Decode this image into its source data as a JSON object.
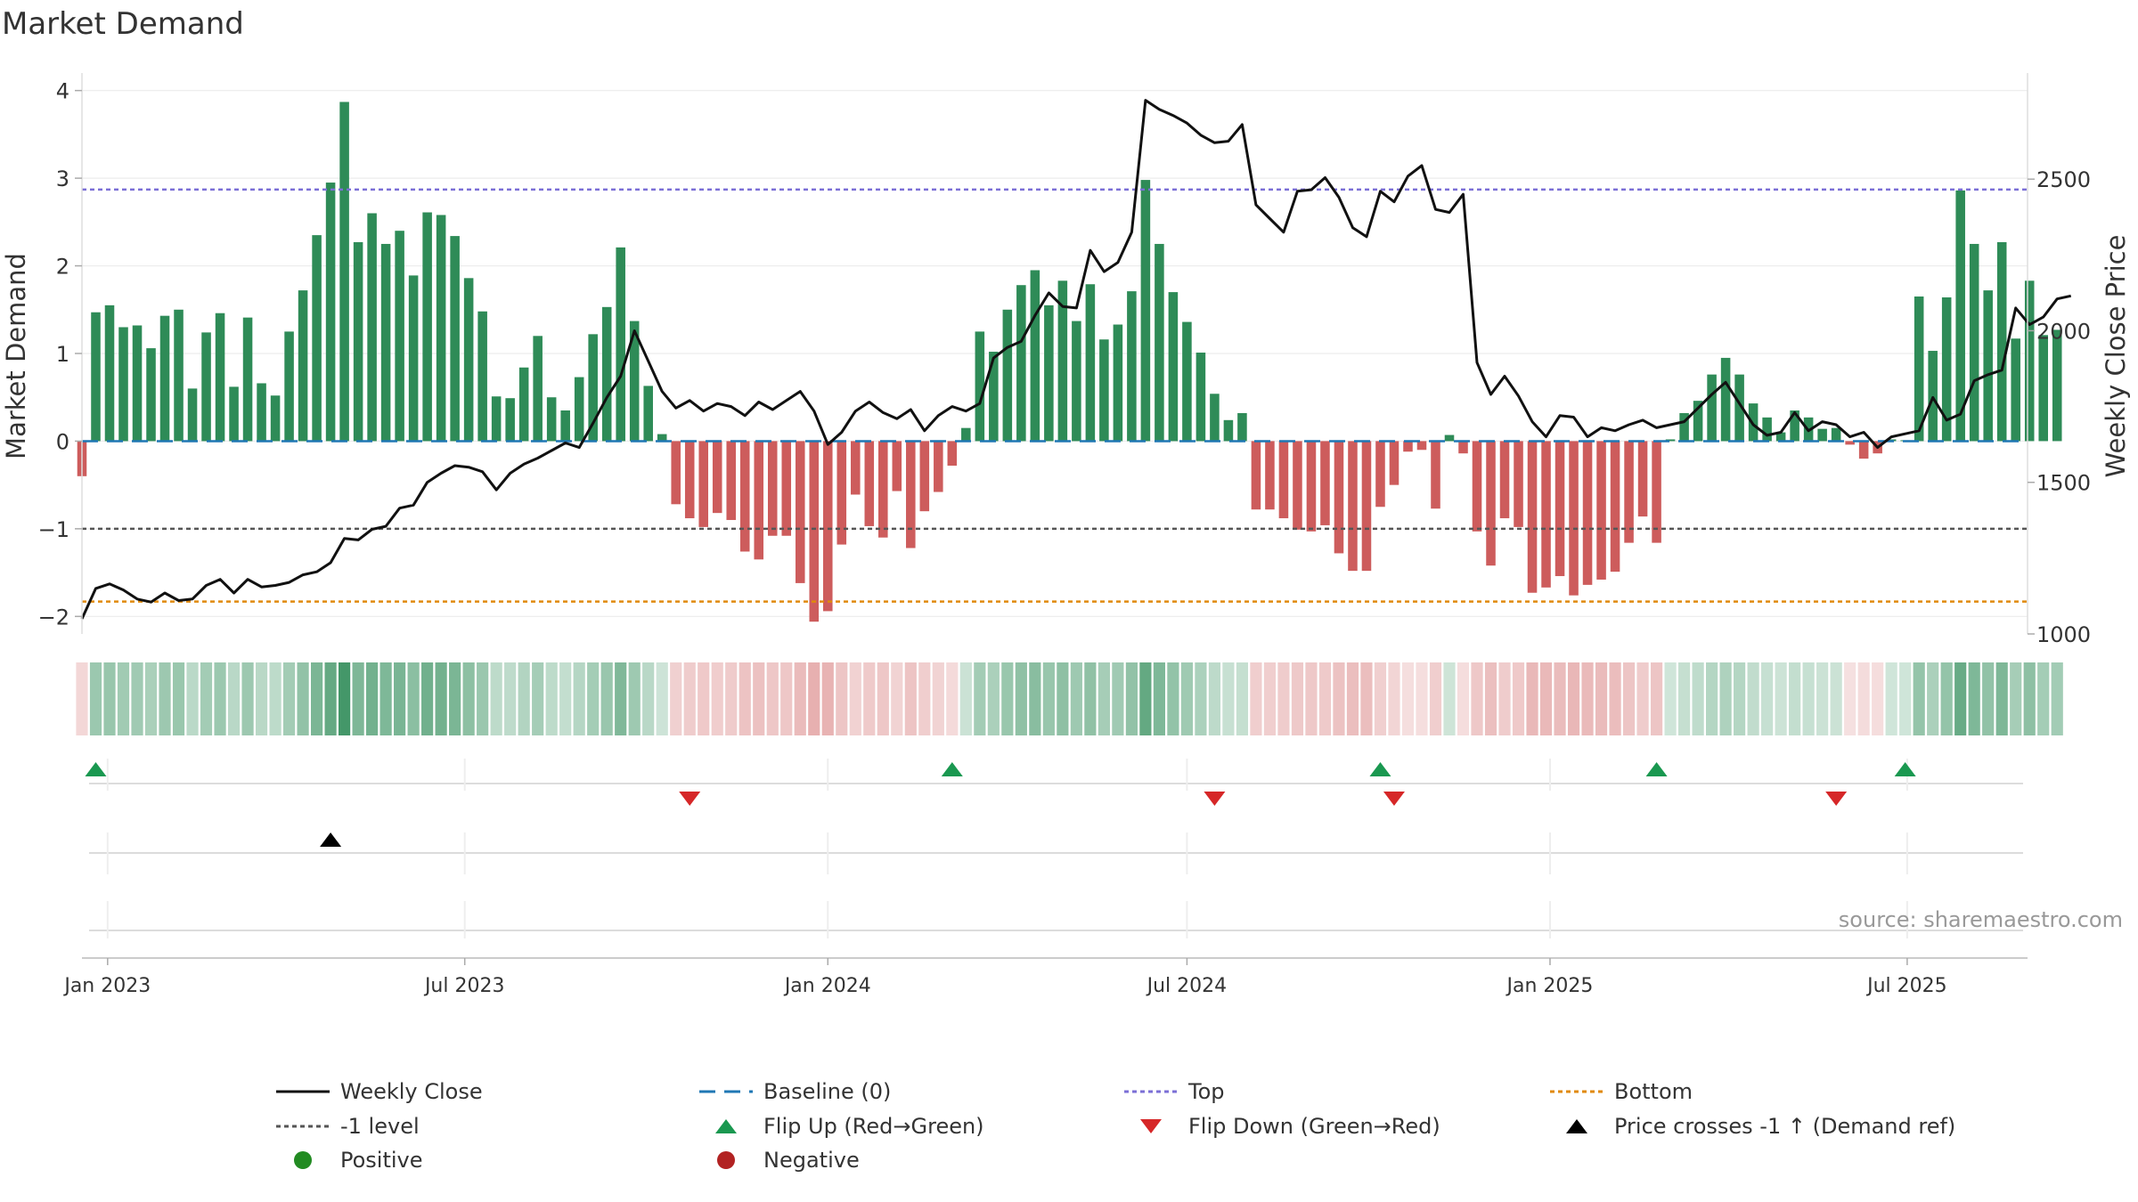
{
  "chart_data": {
    "type": "bar",
    "title": "Market Demand",
    "ylabel_left": "Market Demand",
    "ylabel_right": "Weekly Close Price",
    "source": "source: sharemaestro.com",
    "left_axis": {
      "ylim": [
        -2.2,
        4.2
      ],
      "ticks": [
        -2,
        -1,
        0,
        1,
        2,
        3,
        4
      ],
      "tick_labels": [
        "−2",
        "−1",
        "0",
        "1",
        "2",
        "3",
        "4"
      ]
    },
    "right_axis": {
      "ylim": [
        1000,
        2850
      ],
      "ticks": [
        1000,
        1500,
        2000,
        2500
      ],
      "tick_labels": [
        "1000",
        "1500",
        "2000",
        "2500"
      ]
    },
    "x_axis": {
      "start_date": "2022-12-19",
      "end_date": "2025-08-31",
      "ticks": [
        {
          "date": "2023-01-01",
          "label": "Jan 2023"
        },
        {
          "date": "2023-07-01",
          "label": "Jul 2023"
        },
        {
          "date": "2024-01-01",
          "label": "Jan 2024"
        },
        {
          "date": "2024-07-01",
          "label": "Jul 2024"
        },
        {
          "date": "2025-01-01",
          "label": "Jan 2025"
        },
        {
          "date": "2025-07-01",
          "label": "Jul 2025"
        }
      ]
    },
    "first_week": "2022-12-19",
    "reference_lines": {
      "baseline": 0,
      "top": 2.87,
      "bottom": -1.83,
      "minus1_level": -1
    },
    "demand": [
      -0.4,
      1.47,
      1.55,
      1.3,
      1.32,
      1.06,
      1.43,
      1.5,
      0.6,
      1.24,
      1.46,
      0.62,
      1.41,
      0.66,
      0.52,
      1.25,
      1.72,
      2.35,
      2.95,
      3.87,
      2.27,
      2.6,
      2.25,
      2.4,
      1.89,
      2.61,
      2.58,
      2.34,
      1.86,
      1.48,
      0.51,
      0.49,
      0.84,
      1.2,
      0.5,
      0.35,
      0.73,
      1.22,
      1.53,
      2.21,
      1.37,
      0.63,
      0.08,
      -0.72,
      -0.88,
      -0.98,
      -0.82,
      -0.9,
      -1.26,
      -1.35,
      -1.08,
      -1.08,
      -1.62,
      -2.06,
      -1.94,
      -1.18,
      -0.61,
      -0.97,
      -1.1,
      -0.57,
      -1.22,
      -0.8,
      -0.58,
      -0.28,
      0.15,
      1.25,
      1.02,
      1.5,
      1.78,
      1.95,
      1.55,
      1.83,
      1.37,
      1.79,
      1.16,
      1.33,
      1.71,
      2.98,
      2.25,
      1.7,
      1.36,
      1.01,
      0.54,
      0.24,
      0.32,
      -0.78,
      -0.78,
      -0.88,
      -1.01,
      -1.03,
      -0.96,
      -1.28,
      -1.48,
      -1.48,
      -0.75,
      -0.5,
      -0.12,
      -0.1,
      -0.77,
      0.07,
      -0.14,
      -1.03,
      -1.42,
      -0.88,
      -0.98,
      -1.73,
      -1.67,
      -1.54,
      -1.76,
      -1.64,
      -1.58,
      -1.49,
      -1.16,
      -0.86,
      -1.16,
      0.02,
      0.32,
      0.46,
      0.76,
      0.95,
      0.76,
      0.43,
      0.27,
      0.1,
      0.35,
      0.27,
      0.14,
      0.15,
      -0.04,
      -0.2,
      -0.14,
      0.02,
      0.01,
      1.65,
      1.03,
      1.64,
      2.86,
      2.25,
      1.72,
      2.27,
      1.17,
      1.83,
      1.21,
      1.27
    ],
    "weekly_close": [
      1050,
      1150,
      1165,
      1145,
      1115,
      1105,
      1135,
      1110,
      1115,
      1160,
      1180,
      1135,
      1180,
      1155,
      1160,
      1170,
      1195,
      1205,
      1235,
      1315,
      1310,
      1345,
      1355,
      1415,
      1425,
      1500,
      1530,
      1555,
      1550,
      1535,
      1475,
      1530,
      1560,
      1580,
      1605,
      1630,
      1615,
      1695,
      1780,
      1850,
      2000,
      1900,
      1800,
      1745,
      1770,
      1735,
      1760,
      1750,
      1720,
      1765,
      1740,
      1770,
      1800,
      1735,
      1625,
      1665,
      1735,
      1765,
      1730,
      1710,
      1740,
      1670,
      1720,
      1750,
      1735,
      1760,
      1910,
      1945,
      1965,
      2050,
      2125,
      2080,
      2075,
      2265,
      2195,
      2225,
      2325,
      2760,
      2730,
      2710,
      2685,
      2645,
      2620,
      2625,
      2680,
      2415,
      2370,
      2325,
      2460,
      2465,
      2505,
      2440,
      2340,
      2310,
      2460,
      2425,
      2510,
      2545,
      2400,
      2390,
      2450,
      1895,
      1790,
      1850,
      1785,
      1700,
      1650,
      1720,
      1715,
      1650,
      1680,
      1670,
      1690,
      1705,
      1680,
      1690,
      1700,
      1745,
      1790,
      1830,
      1760,
      1690,
      1655,
      1665,
      1730,
      1670,
      1700,
      1690,
      1650,
      1665,
      1615,
      1650,
      1660,
      1670,
      1780,
      1705,
      1725,
      1835,
      1855,
      1870,
      2075,
      2020,
      2045,
      2105,
      2115
    ],
    "intensity_strip": {
      "legend": "colour strip: green = positive demand, red = negative demand, deeper shade = stronger",
      "positive_color": "#2e8b57",
      "negative_color": "#cd5c5c"
    },
    "markers": {
      "flip_up": [
        "2022-12-26",
        "2024-03-04",
        "2024-10-07",
        "2025-02-24",
        "2025-06-30"
      ],
      "flip_down": [
        "2023-10-23",
        "2024-07-15",
        "2024-10-14",
        "2025-05-26"
      ],
      "price_cross": [
        "2023-04-24"
      ]
    },
    "legend": {
      "weekly_close": "Weekly Close",
      "baseline": "Baseline (0)",
      "top": "Top",
      "bottom": "Bottom",
      "minus1": "-1 level",
      "flip_up": "Flip Up (Red→Green)",
      "flip_down": "Flip Down (Green→Red)",
      "price_cross": "Price crosses -1 ↑ (Demand ref)",
      "positive": "Positive",
      "negative": "Negative"
    },
    "colors": {
      "positive": "#2e8b57",
      "negative": "#cd5c5c",
      "price_line": "#111111",
      "baseline": "#1f77b4",
      "top": "#7b6fd6",
      "bottom": "#e08a0b",
      "minus1": "#555555",
      "flip_up": "#1a9850",
      "flip_down": "#d62728",
      "price_cross": "#000000",
      "legend_positive_dot": "#228b22",
      "legend_negative_dot": "#b22222"
    }
  }
}
